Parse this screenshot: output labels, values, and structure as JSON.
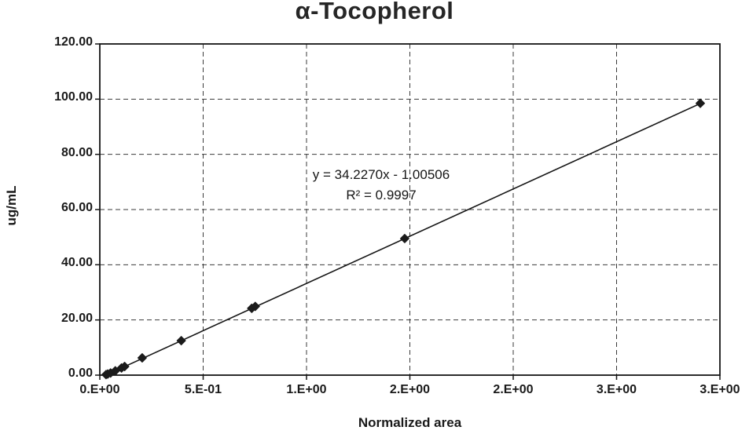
{
  "chart_data": {
    "type": "scatter",
    "title": "α-Tocopherol",
    "xlabel": "Normalized area",
    "ylabel": "ug/mL",
    "xlim": [
      0,
      3
    ],
    "ylim": [
      0,
      120
    ],
    "grid": "dashed",
    "legend": "none",
    "x_tick_values": [
      0,
      0.5,
      1.0,
      1.5,
      2.0,
      2.5,
      3.0
    ],
    "x_tick_labels": [
      "0.E+00",
      "5.E-01",
      "1.E+00",
      "2.E+00",
      "2.E+00",
      "3.E+00",
      "3.E+00"
    ],
    "y_tick_values": [
      0,
      20,
      40,
      60,
      80,
      100,
      120
    ],
    "y_tick_labels": [
      "0.00",
      "20.00",
      "40.00",
      "60.00",
      "80.00",
      "100.00",
      "120.00"
    ],
    "points": [
      {
        "x": 0.03,
        "y": 0.2
      },
      {
        "x": 0.038,
        "y": 0.39
      },
      {
        "x": 0.052,
        "y": 0.78
      },
      {
        "x": 0.075,
        "y": 1.56
      },
      {
        "x": 0.105,
        "y": 2.6
      },
      {
        "x": 0.12,
        "y": 3.13
      },
      {
        "x": 0.205,
        "y": 6.25
      },
      {
        "x": 0.394,
        "y": 12.5
      },
      {
        "x": 0.735,
        "y": 24.2
      },
      {
        "x": 0.752,
        "y": 24.9
      },
      {
        "x": 1.475,
        "y": 49.5
      },
      {
        "x": 2.905,
        "y": 98.5
      }
    ],
    "marker": {
      "shape": "diamond",
      "color": "#1b1b1b",
      "size": 11
    },
    "trendline": {
      "slope": 34.227,
      "intercept": -1.00506,
      "equation": "y = 34.2270x - 1.00506",
      "r_squared": "R² = 0.9997",
      "x_start": 0.032,
      "x_end": 2.907
    }
  }
}
